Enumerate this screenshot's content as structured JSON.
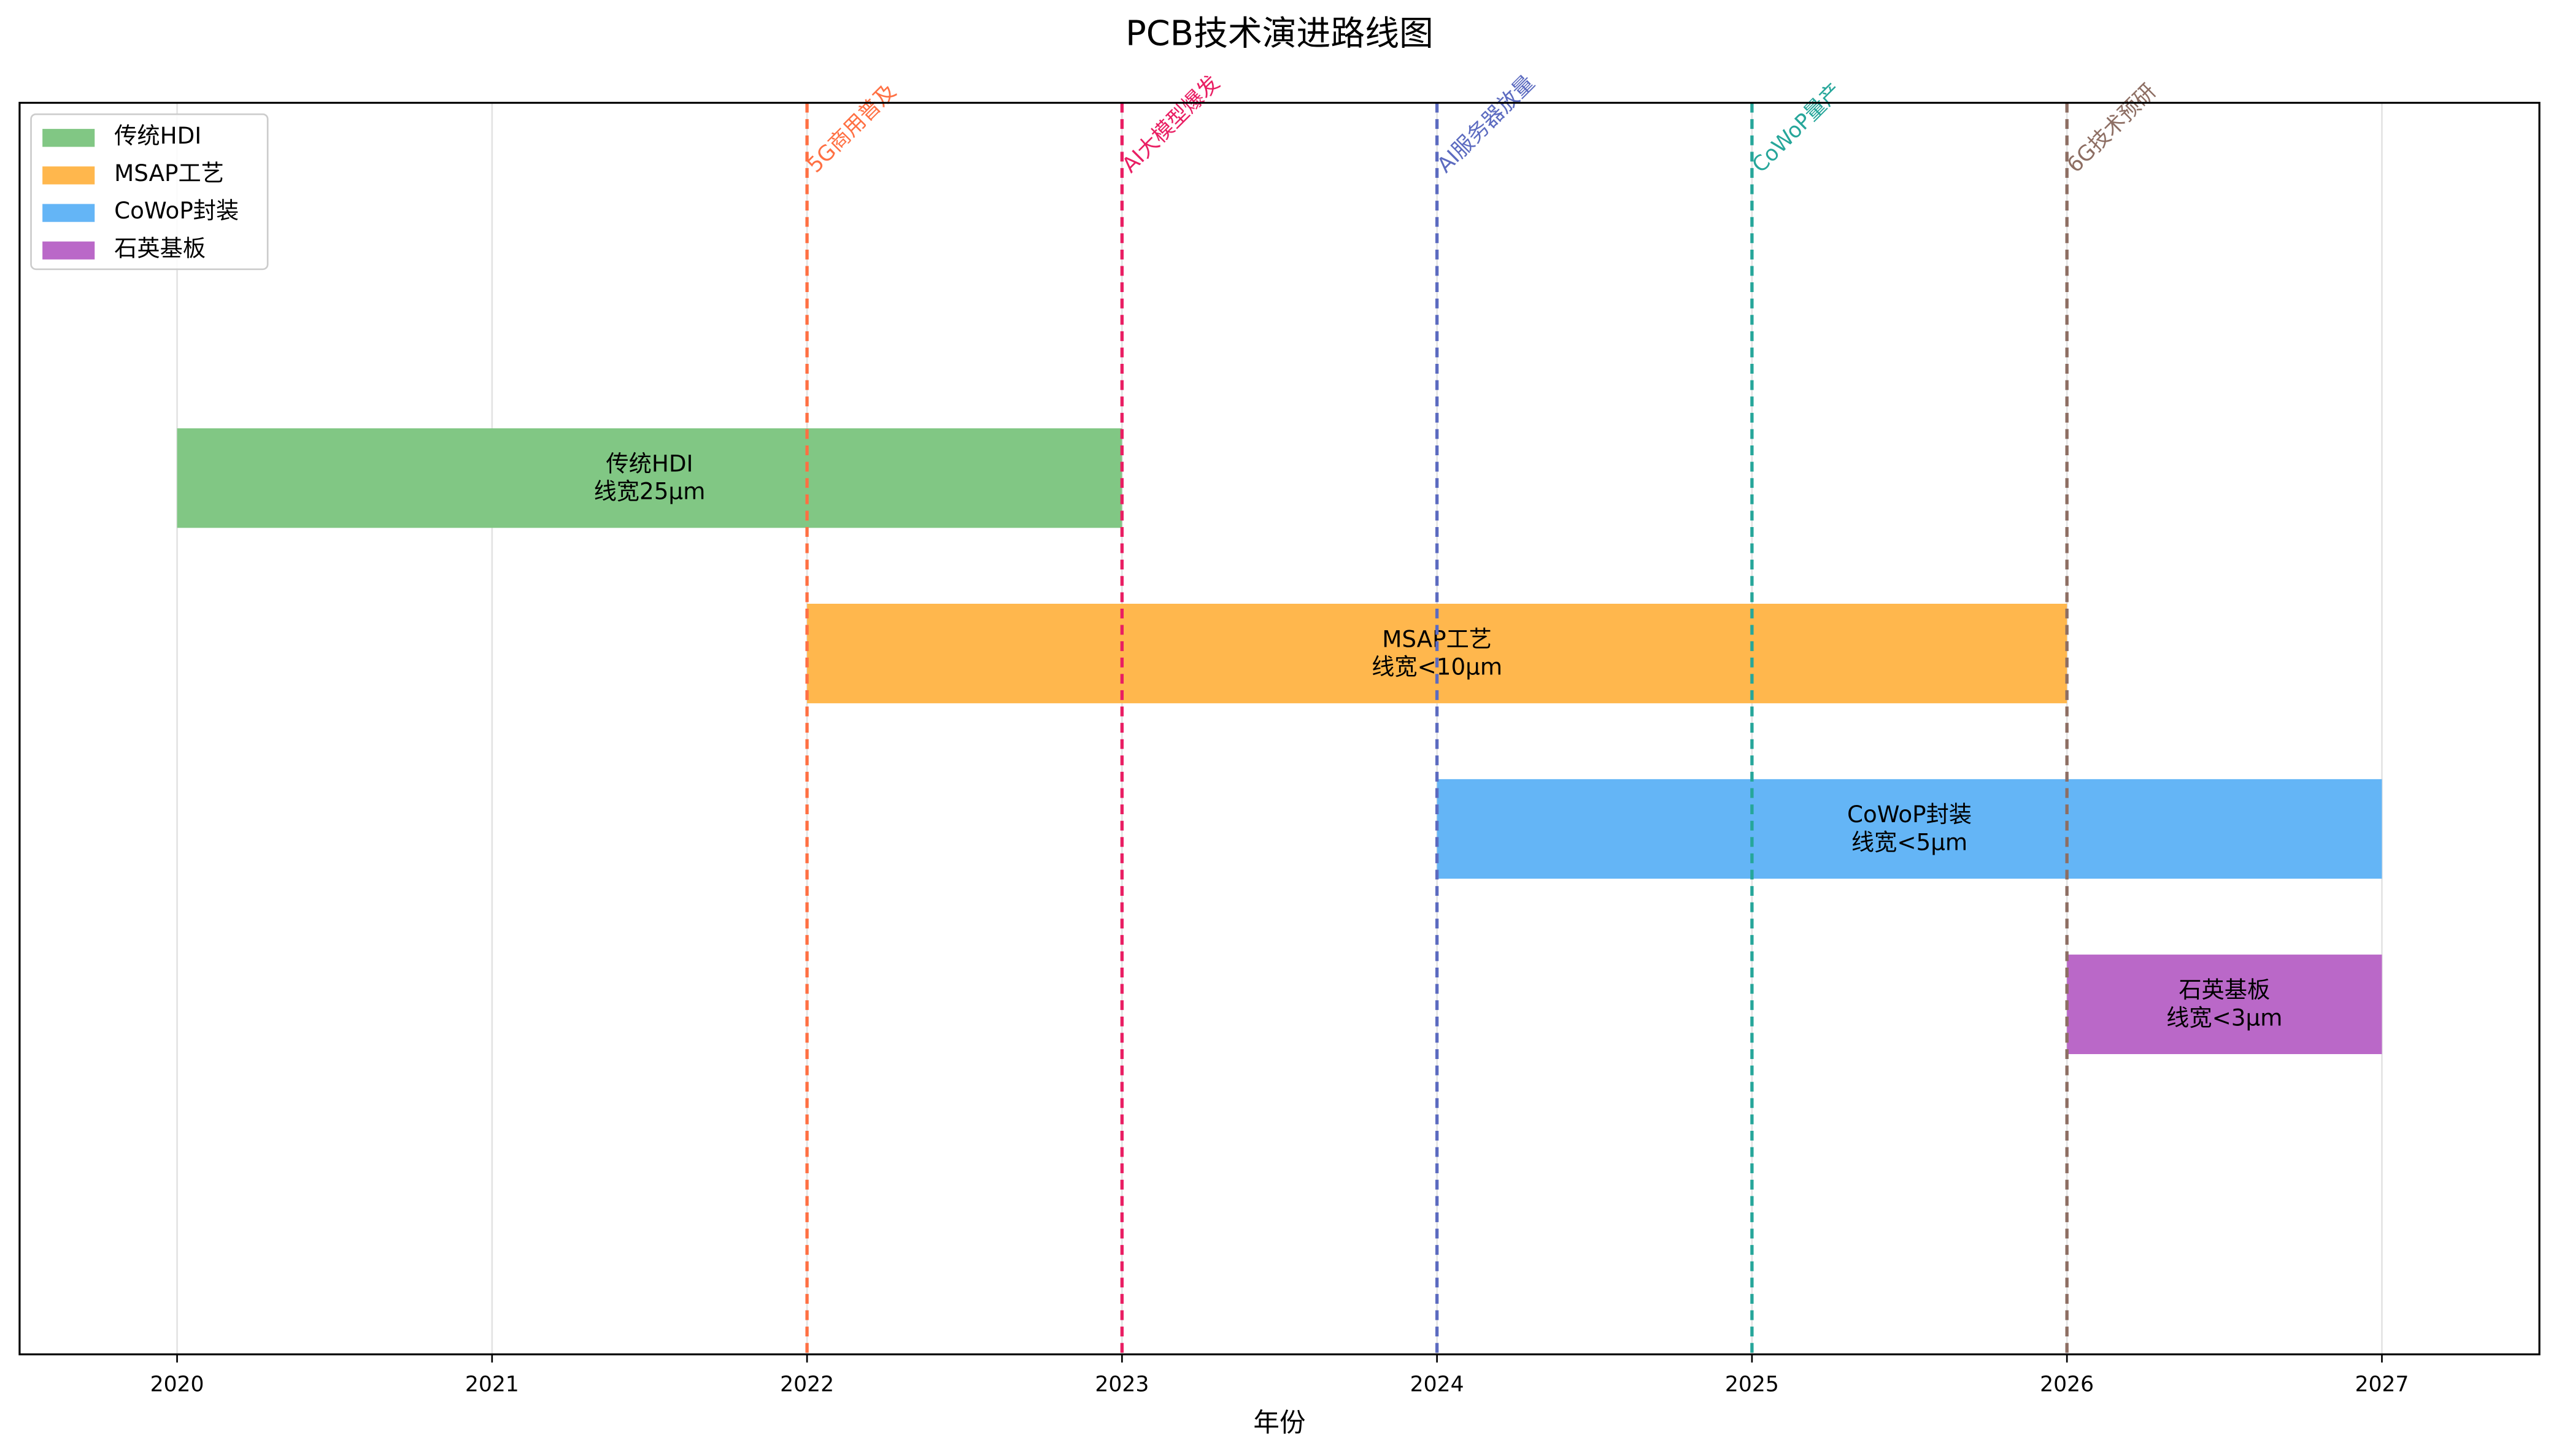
{
  "chart_data": {
    "type": "gantt",
    "title": "PCB技术演进路线图",
    "x_label": "年份",
    "xlim": [
      2019.5,
      2027.5
    ],
    "xticks": [
      2020,
      2021,
      2022,
      2023,
      2024,
      2025,
      2026,
      2027
    ],
    "grid": true,
    "legend": "upper left",
    "tasks": [
      {
        "name": "传统HDI",
        "detail": "线宽25μm",
        "start": 2020,
        "end": 2023,
        "color": "#81c784"
      },
      {
        "name": "MSAP工艺",
        "detail": "线宽<10μm",
        "start": 2022,
        "end": 2026,
        "color": "#ffb74d"
      },
      {
        "name": "CoWoP封装",
        "detail": "线宽<5μm",
        "start": 2024,
        "end": 2027,
        "color": "#64b5f6"
      },
      {
        "name": "石英基板",
        "detail": "线宽<3μm",
        "start": 2026,
        "end": 2027,
        "color": "#ba68c8"
      }
    ],
    "milestones": [
      {
        "x": 2022,
        "label": "5G商用普及",
        "color": "#ff7043"
      },
      {
        "x": 2023,
        "label": "AI大模型爆发",
        "color": "#e91e63"
      },
      {
        "x": 2024,
        "label": "AI服务器放量",
        "color": "#5c6bc0"
      },
      {
        "x": 2025,
        "label": "CoWoP量产",
        "color": "#26a69a"
      },
      {
        "x": 2026,
        "label": "6G技术预研",
        "color": "#8d6e63"
      }
    ]
  }
}
